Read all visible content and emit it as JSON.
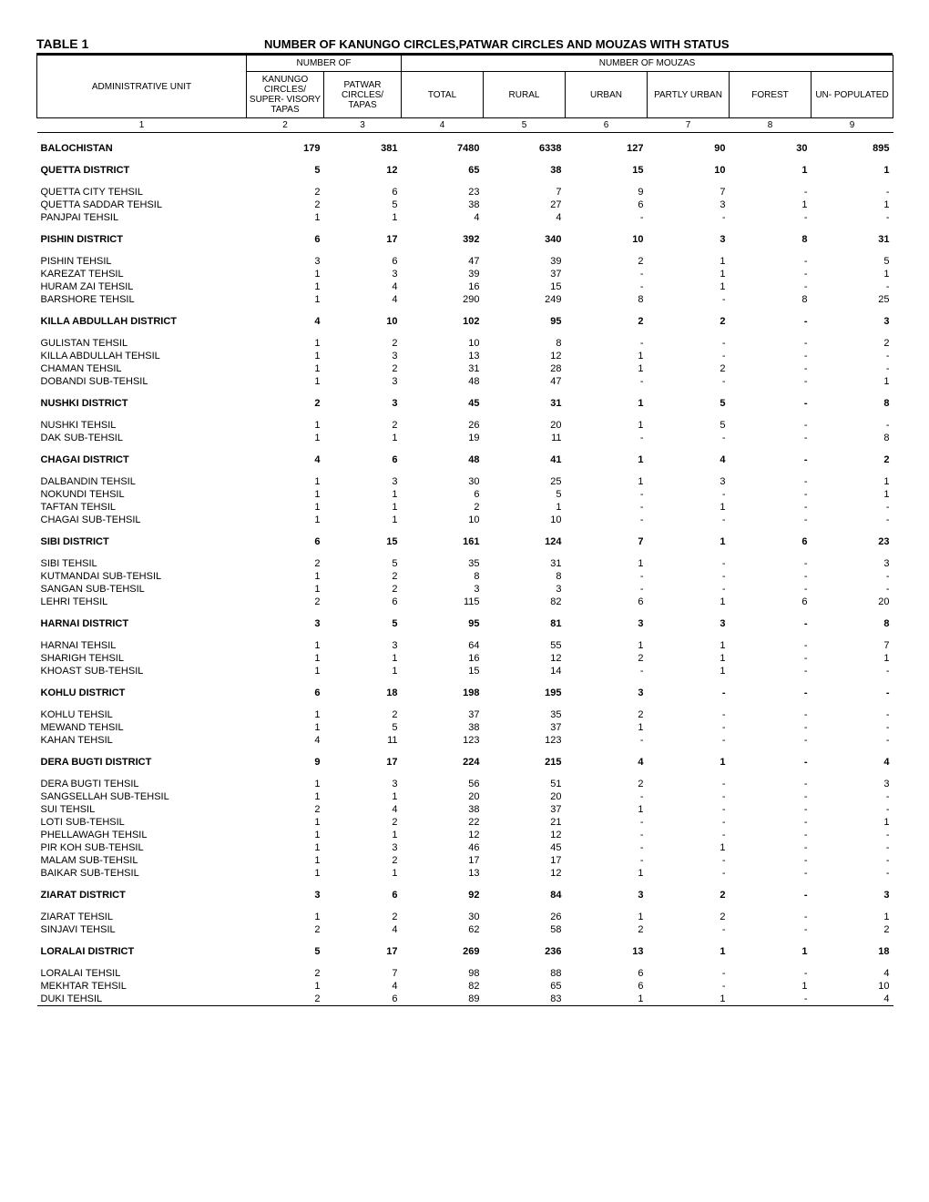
{
  "header": {
    "table_label": "TABLE 1",
    "title": "NUMBER OF KANUNGO CIRCLES,PATWAR CIRCLES AND MOUZAS WITH STATUS"
  },
  "columns": {
    "group_a": "NUMBER OF",
    "group_b": "NUMBER OF MOUZAS",
    "admin_unit": "ADMINISTRATIVE UNIT",
    "kanungo": "KANUNGO CIRCLES/ SUPER- VISORY TAPAS",
    "patwar": "PATWAR CIRCLES/ TAPAS",
    "total": "TOTAL",
    "rural": "RURAL",
    "urban": "URBAN",
    "partly_urban": "PARTLY URBAN",
    "forest": "FOREST",
    "unpop": "UN- POPULATED",
    "nums": [
      "1",
      "2",
      "3",
      "4",
      "5",
      "6",
      "7",
      "8",
      "9"
    ]
  },
  "rows": [
    {
      "t": "spacer"
    },
    {
      "t": "bold",
      "u": "BALOCHISTAN",
      "v": [
        "179",
        "381",
        "7480",
        "6338",
        "127",
        "90",
        "30",
        "895"
      ]
    },
    {
      "t": "spacer"
    },
    {
      "t": "bold",
      "u": "QUETTA DISTRICT",
      "v": [
        "5",
        "12",
        "65",
        "38",
        "15",
        "10",
        "1",
        "1"
      ]
    },
    {
      "t": "spacer"
    },
    {
      "t": "row",
      "u": "QUETTA CITY TEHSIL",
      "v": [
        "2",
        "6",
        "23",
        "7",
        "9",
        "7",
        "-",
        "-"
      ]
    },
    {
      "t": "row",
      "u": "QUETTA SADDAR TEHSIL",
      "v": [
        "2",
        "5",
        "38",
        "27",
        "6",
        "3",
        "1",
        "1"
      ]
    },
    {
      "t": "row",
      "u": "PANJPAI TEHSIL",
      "v": [
        "1",
        "1",
        "4",
        "4",
        "-",
        "-",
        "-",
        "-"
      ]
    },
    {
      "t": "spacer"
    },
    {
      "t": "bold",
      "u": "PISHIN DISTRICT",
      "v": [
        "6",
        "17",
        "392",
        "340",
        "10",
        "3",
        "8",
        "31"
      ]
    },
    {
      "t": "spacer"
    },
    {
      "t": "row",
      "u": "PISHIN TEHSIL",
      "v": [
        "3",
        "6",
        "47",
        "39",
        "2",
        "1",
        "-",
        "5"
      ]
    },
    {
      "t": "row",
      "u": "KAREZAT TEHSIL",
      "v": [
        "1",
        "3",
        "39",
        "37",
        "-",
        "1",
        "-",
        "1"
      ]
    },
    {
      "t": "row",
      "u": "HURAM ZAI TEHSIL",
      "v": [
        "1",
        "4",
        "16",
        "15",
        "-",
        "1",
        "-",
        "-"
      ]
    },
    {
      "t": "row",
      "u": "BARSHORE TEHSIL",
      "v": [
        "1",
        "4",
        "290",
        "249",
        "8",
        "-",
        "8",
        "25"
      ]
    },
    {
      "t": "spacer"
    },
    {
      "t": "bold",
      "u": "KILLA ABDULLAH DISTRICT",
      "v": [
        "4",
        "10",
        "102",
        "95",
        "2",
        "2",
        "-",
        "3"
      ]
    },
    {
      "t": "spacer"
    },
    {
      "t": "row",
      "u": "GULISTAN TEHSIL",
      "v": [
        "1",
        "2",
        "10",
        "8",
        "-",
        "-",
        "-",
        "2"
      ]
    },
    {
      "t": "row",
      "u": "KILLA ABDULLAH TEHSIL",
      "v": [
        "1",
        "3",
        "13",
        "12",
        "1",
        "-",
        "-",
        "-"
      ]
    },
    {
      "t": "row",
      "u": "CHAMAN TEHSIL",
      "v": [
        "1",
        "2",
        "31",
        "28",
        "1",
        "2",
        "-",
        "-"
      ]
    },
    {
      "t": "row",
      "u": "DOBANDI SUB-TEHSIL",
      "v": [
        "1",
        "3",
        "48",
        "47",
        "-",
        "-",
        "-",
        "1"
      ]
    },
    {
      "t": "spacer"
    },
    {
      "t": "bold",
      "u": "NUSHKI DISTRICT",
      "v": [
        "2",
        "3",
        "45",
        "31",
        "1",
        "5",
        "-",
        "8"
      ]
    },
    {
      "t": "spacer"
    },
    {
      "t": "row",
      "u": "NUSHKI TEHSIL",
      "v": [
        "1",
        "2",
        "26",
        "20",
        "1",
        "5",
        "-",
        "-"
      ]
    },
    {
      "t": "row",
      "u": "DAK SUB-TEHSIL",
      "v": [
        "1",
        "1",
        "19",
        "11",
        "-",
        "-",
        "-",
        "8"
      ]
    },
    {
      "t": "spacer"
    },
    {
      "t": "bold",
      "u": "CHAGAI DISTRICT",
      "v": [
        "4",
        "6",
        "48",
        "41",
        "1",
        "4",
        "-",
        "2"
      ]
    },
    {
      "t": "spacer"
    },
    {
      "t": "row",
      "u": "DALBANDIN TEHSIL",
      "v": [
        "1",
        "3",
        "30",
        "25",
        "1",
        "3",
        "-",
        "1"
      ]
    },
    {
      "t": "row",
      "u": "NOKUNDI TEHSIL",
      "v": [
        "1",
        "1",
        "6",
        "5",
        "-",
        "-",
        "-",
        "1"
      ]
    },
    {
      "t": "row",
      "u": "TAFTAN TEHSIL",
      "v": [
        "1",
        "1",
        "2",
        "1",
        "-",
        "1",
        "-",
        "-"
      ]
    },
    {
      "t": "row",
      "u": "CHAGAI SUB-TEHSIL",
      "v": [
        "1",
        "1",
        "10",
        "10",
        "-",
        "-",
        "-",
        "-"
      ]
    },
    {
      "t": "spacer"
    },
    {
      "t": "bold",
      "u": "SIBI DISTRICT",
      "v": [
        "6",
        "15",
        "161",
        "124",
        "7",
        "1",
        "6",
        "23"
      ]
    },
    {
      "t": "spacer"
    },
    {
      "t": "row",
      "u": "SIBI TEHSIL",
      "v": [
        "2",
        "5",
        "35",
        "31",
        "1",
        "-",
        "-",
        "3"
      ]
    },
    {
      "t": "row",
      "u": "KUTMANDAI SUB-TEHSIL",
      "v": [
        "1",
        "2",
        "8",
        "8",
        "-",
        "-",
        "-",
        "-"
      ]
    },
    {
      "t": "row",
      "u": "SANGAN SUB-TEHSIL",
      "v": [
        "1",
        "2",
        "3",
        "3",
        "-",
        "-",
        "-",
        "-"
      ]
    },
    {
      "t": "row",
      "u": "LEHRI TEHSIL",
      "v": [
        "2",
        "6",
        "115",
        "82",
        "6",
        "1",
        "6",
        "20"
      ]
    },
    {
      "t": "spacer"
    },
    {
      "t": "bold",
      "u": "HARNAI DISTRICT",
      "v": [
        "3",
        "5",
        "95",
        "81",
        "3",
        "3",
        "-",
        "8"
      ]
    },
    {
      "t": "spacer"
    },
    {
      "t": "row",
      "u": "HARNAI TEHSIL",
      "v": [
        "1",
        "3",
        "64",
        "55",
        "1",
        "1",
        "-",
        "7"
      ]
    },
    {
      "t": "row",
      "u": "SHARIGH TEHSIL",
      "v": [
        "1",
        "1",
        "16",
        "12",
        "2",
        "1",
        "-",
        "1"
      ]
    },
    {
      "t": "row",
      "u": "KHOAST SUB-TEHSIL",
      "v": [
        "1",
        "1",
        "15",
        "14",
        "-",
        "1",
        "-",
        "-"
      ]
    },
    {
      "t": "spacer"
    },
    {
      "t": "bold",
      "u": "KOHLU DISTRICT",
      "v": [
        "6",
        "18",
        "198",
        "195",
        "3",
        "-",
        "-",
        "-"
      ]
    },
    {
      "t": "spacer"
    },
    {
      "t": "row",
      "u": "KOHLU TEHSIL",
      "v": [
        "1",
        "2",
        "37",
        "35",
        "2",
        "-",
        "-",
        "-"
      ]
    },
    {
      "t": "row",
      "u": "MEWAND TEHSIL",
      "v": [
        "1",
        "5",
        "38",
        "37",
        "1",
        "-",
        "-",
        "-"
      ]
    },
    {
      "t": "row",
      "u": "KAHAN TEHSIL",
      "v": [
        "4",
        "11",
        "123",
        "123",
        "-",
        "-",
        "-",
        "-"
      ]
    },
    {
      "t": "spacer"
    },
    {
      "t": "bold",
      "u": "DERA BUGTI DISTRICT",
      "v": [
        "9",
        "17",
        "224",
        "215",
        "4",
        "1",
        "-",
        "4"
      ]
    },
    {
      "t": "spacer"
    },
    {
      "t": "row",
      "u": "DERA BUGTI TEHSIL",
      "v": [
        "1",
        "3",
        "56",
        "51",
        "2",
        "-",
        "-",
        "3"
      ]
    },
    {
      "t": "row",
      "u": "SANGSELLAH SUB-TEHSIL",
      "v": [
        "1",
        "1",
        "20",
        "20",
        "-",
        "-",
        "-",
        "-"
      ]
    },
    {
      "t": "row",
      "u": "SUI TEHSIL",
      "v": [
        "2",
        "4",
        "38",
        "37",
        "1",
        "-",
        "-",
        "-"
      ]
    },
    {
      "t": "row",
      "u": "LOTI SUB-TEHSIL",
      "v": [
        "1",
        "2",
        "22",
        "21",
        "-",
        "-",
        "-",
        "1"
      ]
    },
    {
      "t": "row",
      "u": "PHELLAWAGH TEHSIL",
      "v": [
        "1",
        "1",
        "12",
        "12",
        "-",
        "-",
        "-",
        "-"
      ]
    },
    {
      "t": "row",
      "u": "PIR KOH SUB-TEHSIL",
      "v": [
        "1",
        "3",
        "46",
        "45",
        "-",
        "1",
        "-",
        "-"
      ]
    },
    {
      "t": "row",
      "u": "MALAM SUB-TEHSIL",
      "v": [
        "1",
        "2",
        "17",
        "17",
        "-",
        "-",
        "-",
        "-"
      ]
    },
    {
      "t": "row",
      "u": "BAIKAR SUB-TEHSIL",
      "v": [
        "1",
        "1",
        "13",
        "12",
        "1",
        "-",
        "-",
        "-"
      ]
    },
    {
      "t": "spacer"
    },
    {
      "t": "bold",
      "u": "ZIARAT DISTRICT",
      "v": [
        "3",
        "6",
        "92",
        "84",
        "3",
        "2",
        "-",
        "3"
      ]
    },
    {
      "t": "spacer"
    },
    {
      "t": "row",
      "u": "ZIARAT TEHSIL",
      "v": [
        "1",
        "2",
        "30",
        "26",
        "1",
        "2",
        "-",
        "1"
      ]
    },
    {
      "t": "row",
      "u": "SINJAVI TEHSIL",
      "v": [
        "2",
        "4",
        "62",
        "58",
        "2",
        "-",
        "-",
        "2"
      ]
    },
    {
      "t": "spacer"
    },
    {
      "t": "bold",
      "u": "LORALAI DISTRICT",
      "v": [
        "5",
        "17",
        "269",
        "236",
        "13",
        "1",
        "1",
        "18"
      ]
    },
    {
      "t": "spacer"
    },
    {
      "t": "row",
      "u": "LORALAI TEHSIL",
      "v": [
        "2",
        "7",
        "98",
        "88",
        "6",
        "-",
        "-",
        "4"
      ]
    },
    {
      "t": "row",
      "u": "MEKHTAR TEHSIL",
      "v": [
        "1",
        "4",
        "82",
        "65",
        "6",
        "-",
        "1",
        "10"
      ]
    },
    {
      "t": "row",
      "u": "DUKI TEHSIL",
      "underline": true,
      "v": [
        "2",
        "6",
        "89",
        "83",
        "1",
        "1",
        "-",
        "4"
      ]
    }
  ]
}
